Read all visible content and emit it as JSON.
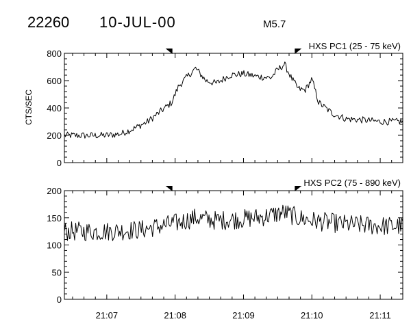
{
  "header": {
    "event_number": "22260",
    "date": "10-JUL-00",
    "flare_class": "M5.7"
  },
  "chart_data": [
    {
      "type": "line",
      "title": "HXS PC1 (25 - 75 keV)",
      "ylabel": "CTS/SEC",
      "xlabel": "",
      "x_tick_labels": [
        "21:07",
        "21:08",
        "21:09",
        "21:10",
        "21:11"
      ],
      "y_tick_labels": [
        "0",
        "200",
        "400",
        "600",
        "800"
      ],
      "ylim": [
        0,
        800
      ],
      "xlim_minutes_after_21_00": [
        6.38,
        11.33
      ],
      "marker_times_minutes_after_21_00": [
        7.92,
        9.79
      ],
      "series_keypoints": {
        "t": [
          6.38,
          6.7,
          7.0,
          7.2,
          7.4,
          7.6,
          7.8,
          7.95,
          8.05,
          8.2,
          8.3,
          8.45,
          8.6,
          8.8,
          9.0,
          9.2,
          9.4,
          9.5,
          9.6,
          9.7,
          9.8,
          9.9,
          10.0,
          10.1,
          10.3,
          10.5,
          10.8,
          11.0,
          11.33
        ],
        "v": [
          200,
          198,
          200,
          210,
          250,
          300,
          380,
          440,
          560,
          640,
          690,
          600,
          580,
          640,
          650,
          630,
          620,
          680,
          720,
          620,
          540,
          530,
          610,
          440,
          360,
          320,
          310,
          300,
          300
        ]
      },
      "noise_amplitude": 25
    },
    {
      "type": "line",
      "title": "HXS PC2 (75 - 890 keV)",
      "ylabel": "",
      "xlabel": "",
      "x_tick_labels": [
        "21:07",
        "21:08",
        "21:09",
        "21:10",
        "21:11"
      ],
      "y_tick_labels": [
        "0",
        "50",
        "100",
        "150",
        "200"
      ],
      "ylim": [
        0,
        200
      ],
      "xlim_minutes_after_21_00": [
        6.38,
        11.33
      ],
      "marker_times_minutes_after_21_00": [
        7.92,
        9.79
      ],
      "series_keypoints": {
        "t": [
          6.38,
          7.0,
          7.5,
          8.0,
          8.3,
          8.6,
          9.0,
          9.3,
          9.6,
          9.8,
          10.0,
          10.5,
          11.0,
          11.33
        ],
        "v": [
          125,
          125,
          128,
          140,
          150,
          145,
          148,
          152,
          160,
          150,
          145,
          138,
          135,
          135
        ]
      },
      "noise_amplitude": 18
    }
  ]
}
